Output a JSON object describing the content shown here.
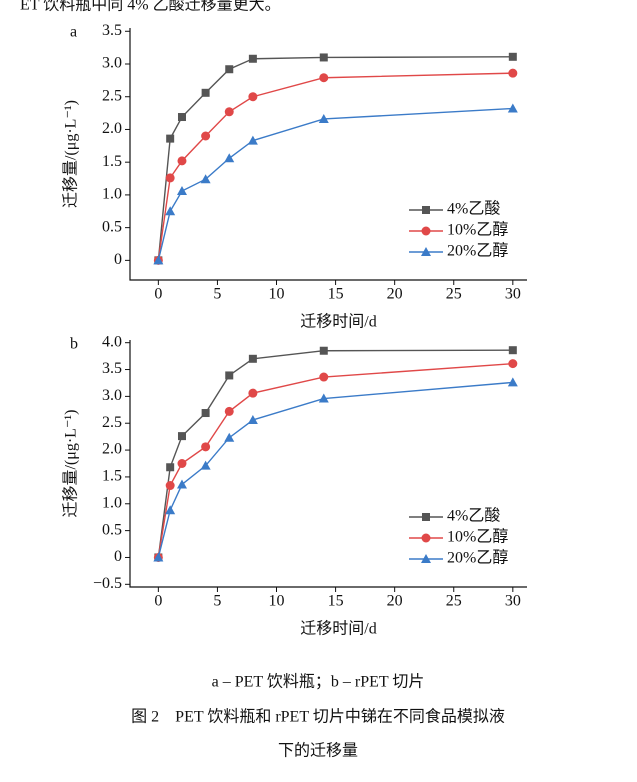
{
  "top_text": "ET 饮料瓶中同 4% 乙酸迁移量更大。",
  "charts": [
    {
      "type": "line",
      "panel": "a",
      "ylabel": "迁移量/(μg·L⁻¹)",
      "xlabel": "迁移时间/d",
      "x": [
        0,
        1,
        2,
        4,
        6,
        8,
        14,
        30
      ],
      "xlim": [
        -2.4,
        31.2
      ],
      "xticks": [
        0,
        5,
        10,
        15,
        20,
        25,
        30
      ],
      "ylim": [
        -0.3,
        3.55
      ],
      "yticks": [
        0,
        0.5,
        {
          "value": 1,
          "label": "1.0"
        },
        1.5,
        {
          "value": 2,
          "label": "2.0"
        },
        2.5,
        {
          "value": 3,
          "label": "3.0"
        },
        3.5
      ],
      "legend": "lower right",
      "series": [
        {
          "name": "4%乙酸",
          "color": "#555555",
          "marker": "square",
          "values": [
            0,
            1.86,
            2.19,
            2.56,
            2.92,
            3.08,
            3.1,
            3.11
          ]
        },
        {
          "name": "10%乙醇",
          "color": "#e04848",
          "marker": "circle",
          "values": [
            0,
            1.26,
            1.52,
            1.9,
            2.27,
            2.5,
            2.79,
            2.86
          ]
        },
        {
          "name": "20%乙醇",
          "color": "#3b7bc8",
          "marker": "triangle",
          "values": [
            0,
            0.75,
            1.06,
            1.24,
            1.56,
            1.83,
            2.16,
            2.32
          ]
        }
      ]
    },
    {
      "type": "line",
      "panel": "b",
      "ylabel": "迁移量/(μg·L⁻¹)",
      "xlabel": "迁移时间/d",
      "x": [
        0,
        1,
        2,
        4,
        6,
        8,
        14,
        30
      ],
      "xlim": [
        -2.4,
        31.2
      ],
      "xticks": [
        0,
        5,
        10,
        15,
        20,
        25,
        30
      ],
      "ylim": [
        -0.55,
        4.05
      ],
      "yticks": [
        {
          "value": -0.5,
          "label": "−0.5"
        },
        0,
        0.5,
        {
          "value": 1,
          "label": "1.0"
        },
        1.5,
        {
          "value": 2,
          "label": "2.0"
        },
        2.5,
        {
          "value": 3,
          "label": "3.0"
        },
        3.5,
        {
          "value": 4,
          "label": "4.0"
        }
      ],
      "legend": "lower right",
      "series": [
        {
          "name": "4%乙酸",
          "color": "#555555",
          "marker": "square",
          "values": [
            0,
            1.68,
            2.26,
            2.69,
            3.39,
            3.7,
            3.85,
            3.86
          ]
        },
        {
          "name": "10%乙醇",
          "color": "#e04848",
          "marker": "circle",
          "values": [
            0,
            1.34,
            1.75,
            2.06,
            2.72,
            3.06,
            3.36,
            3.61
          ]
        },
        {
          "name": "20%乙醇",
          "color": "#3b7bc8",
          "marker": "triangle",
          "values": [
            0,
            0.88,
            1.36,
            1.71,
            2.23,
            2.56,
            2.96,
            3.26
          ]
        }
      ]
    }
  ],
  "subcaption": "a – PET 饮料瓶；b – rPET 切片",
  "caption": [
    "图 2　PET 饮料瓶和 rPET 切片中锑在不同食品模拟液",
    "下的迁移量"
  ]
}
